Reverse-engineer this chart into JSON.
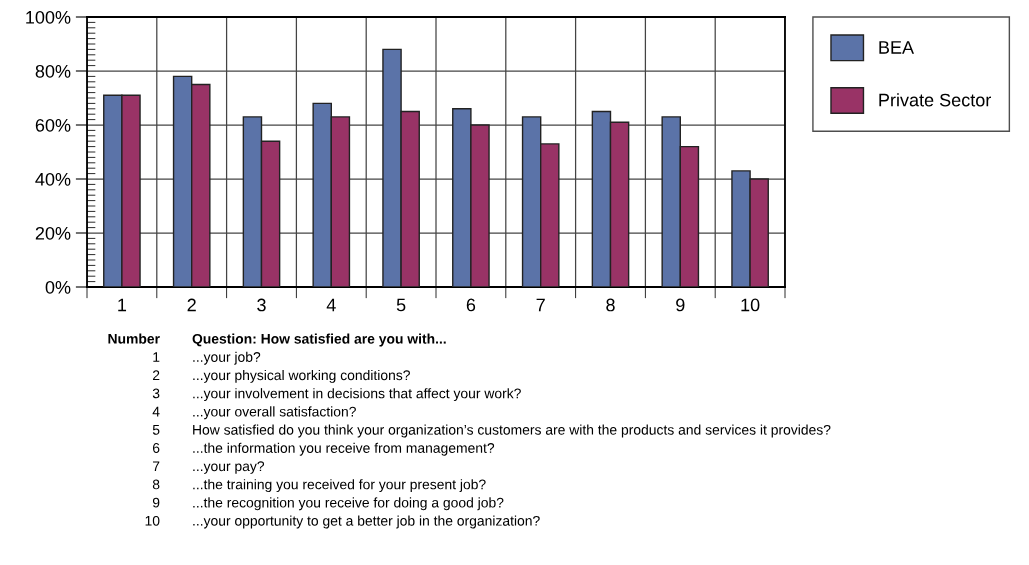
{
  "chart_data": {
    "type": "bar",
    "categories": [
      "1",
      "2",
      "3",
      "4",
      "5",
      "6",
      "7",
      "8",
      "9",
      "10"
    ],
    "series": [
      {
        "name": "BEA",
        "color": "#5b73a8",
        "values": [
          71,
          78,
          63,
          68,
          88,
          66,
          63,
          65,
          63,
          43
        ]
      },
      {
        "name": "Private Sector",
        "color": "#993366",
        "values": [
          71,
          75,
          54,
          63,
          65,
          60,
          53,
          61,
          52,
          40
        ]
      }
    ],
    "ylim": [
      0,
      100
    ],
    "yticks": [
      {
        "value": 0,
        "label": "0%"
      },
      {
        "value": 20,
        "label": "20%"
      },
      {
        "value": 40,
        "label": "40%"
      },
      {
        "value": 60,
        "label": "60%"
      },
      {
        "value": 80,
        "label": "80%"
      },
      {
        "value": 100,
        "label": "100%"
      }
    ],
    "grid": true,
    "legend": "top right",
    "annotations": [
      "Number",
      "Question: How satisfied are you with...",
      "1",
      "...your job?",
      "2",
      "...your physical working conditions?",
      "3",
      "...your involvement in decisions that affect your work?",
      "4",
      "...your overall satisfaction?",
      "5",
      "How satisfied do you think your organization’s customers are with the products and services it provides?",
      "6",
      "...the information you receive from management?",
      "7",
      "...your pay?",
      "8",
      "...the training you received for your present job?",
      "9",
      "...the recognition you receive for doing a good job?",
      "10",
      "...your opportunity to get a better job in the organization?"
    ]
  }
}
